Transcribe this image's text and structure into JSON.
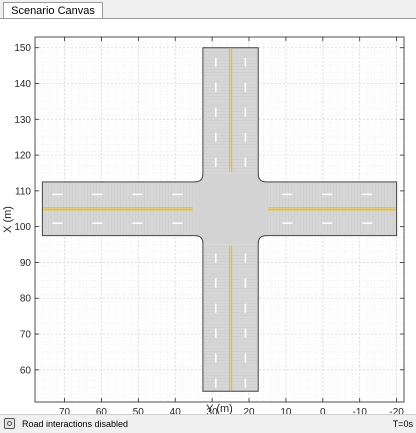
{
  "window": {
    "tab_label": "Scenario Canvas"
  },
  "chart_data": {
    "type": "map",
    "xlabel": "Y (m)",
    "ylabel": "X (m)",
    "x_ticks": [
      70,
      60,
      50,
      40,
      30,
      20,
      10,
      0,
      -10,
      -20
    ],
    "y_ticks": [
      150,
      140,
      130,
      120,
      110,
      100,
      90,
      80,
      70,
      60
    ],
    "x_axis_reversed": true,
    "xlim": [
      78,
      -22
    ],
    "ylim": [
      51,
      153
    ],
    "grid": "on",
    "roads": [
      {
        "name": "north-south",
        "center_y": 25,
        "from_x": 54,
        "to_x": 150,
        "width": 15
      },
      {
        "name": "east-west",
        "center_x": 105,
        "from_y": 76,
        "to_y": -20,
        "width": 15
      }
    ],
    "intersection": {
      "center_y": 25,
      "center_x": 105
    },
    "colors": {
      "road": "#d6d6d6",
      "road_edge": "#444444",
      "center_line": "#f2c200",
      "lane_dash": "#ffffff",
      "grid": "#e3e3e3"
    }
  },
  "status": {
    "message": "Road interactions disabled",
    "time": "T=0s",
    "icon": "road-interaction-icon"
  }
}
